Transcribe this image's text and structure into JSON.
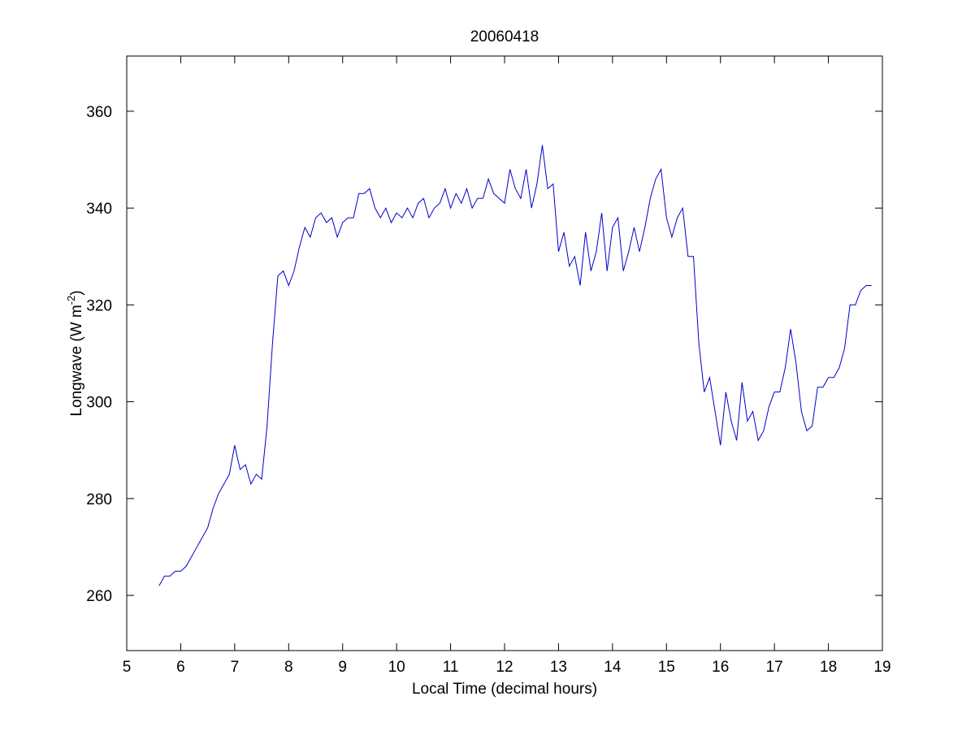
{
  "chart_data": {
    "type": "line",
    "title": "20060418",
    "x_label": "Local Time (decimal hours)",
    "y_label": {
      "text": "Longwave (W m",
      "superscript": "-2",
      "suffix": ")"
    },
    "xlim": [
      5,
      19
    ],
    "xticks": [
      5,
      6,
      7,
      8,
      9,
      10,
      11,
      12,
      13,
      14,
      15,
      16,
      17,
      18,
      19
    ],
    "ylim": [
      248.6,
      371.4
    ],
    "yticks": [
      260,
      280,
      300,
      320,
      340,
      360
    ],
    "grid": false,
    "x": [
      5.6,
      5.7,
      5.8,
      5.9,
      6.0,
      6.1,
      6.2,
      6.3,
      6.4,
      6.5,
      6.6,
      6.7,
      6.8,
      6.9,
      7.0,
      7.1,
      7.2,
      7.3,
      7.4,
      7.5,
      7.6,
      7.7,
      7.8,
      7.9,
      8.0,
      8.1,
      8.2,
      8.3,
      8.4,
      8.5,
      8.6,
      8.7,
      8.8,
      8.9,
      9.0,
      9.1,
      9.2,
      9.3,
      9.4,
      9.5,
      9.6,
      9.7,
      9.8,
      9.9,
      10.0,
      10.1,
      10.2,
      10.3,
      10.4,
      10.5,
      10.6,
      10.7,
      10.8,
      10.9,
      11.0,
      11.1,
      11.2,
      11.3,
      11.4,
      11.5,
      11.6,
      11.7,
      11.8,
      11.9,
      12.0,
      12.1,
      12.2,
      12.3,
      12.4,
      12.5,
      12.6,
      12.7,
      12.8,
      12.9,
      13.0,
      13.1,
      13.2,
      13.3,
      13.4,
      13.5,
      13.6,
      13.7,
      13.8,
      13.9,
      14.0,
      14.1,
      14.2,
      14.3,
      14.4,
      14.5,
      14.6,
      14.7,
      14.8,
      14.9,
      15.0,
      15.1,
      15.2,
      15.3,
      15.4,
      15.5,
      15.6,
      15.7,
      15.8,
      15.9,
      16.0,
      16.1,
      16.2,
      16.3,
      16.4,
      16.5,
      16.6,
      16.7,
      16.8,
      16.9,
      17.0,
      17.1,
      17.2,
      17.3,
      17.4,
      17.5,
      17.6,
      17.7,
      17.8,
      17.9,
      18.0,
      18.1,
      18.2,
      18.3,
      18.4,
      18.5,
      18.6,
      18.7,
      18.8
    ],
    "series": [
      {
        "color": "#0000cc",
        "values": [
          262,
          264,
          264,
          265,
          265,
          266,
          268,
          270,
          272,
          274,
          278,
          281,
          283,
          285,
          291,
          286,
          287,
          283,
          285,
          284,
          295,
          312,
          326,
          327,
          324,
          327,
          332,
          336,
          334,
          338,
          339,
          337,
          338,
          334,
          337,
          338,
          338,
          343,
          343,
          344,
          340,
          338,
          340,
          337,
          339,
          338,
          340,
          338,
          341,
          342,
          338,
          340,
          341,
          344,
          340,
          343,
          341,
          344,
          340,
          342,
          342,
          346,
          343,
          342,
          341,
          348,
          344,
          342,
          348,
          340,
          345,
          353,
          344,
          345,
          331,
          335,
          328,
          330,
          324,
          335,
          327,
          331,
          339,
          327,
          336,
          338,
          327,
          331,
          336,
          331,
          336,
          342,
          346,
          348,
          338,
          334,
          338,
          340,
          330,
          330,
          312,
          302,
          305,
          298,
          291,
          302,
          296,
          292,
          304,
          296,
          298,
          292,
          294,
          299,
          302,
          302,
          307,
          315,
          308,
          298,
          294,
          295,
          303,
          303,
          305,
          305,
          307,
          311,
          320,
          320,
          323,
          324,
          324
        ]
      }
    ]
  }
}
